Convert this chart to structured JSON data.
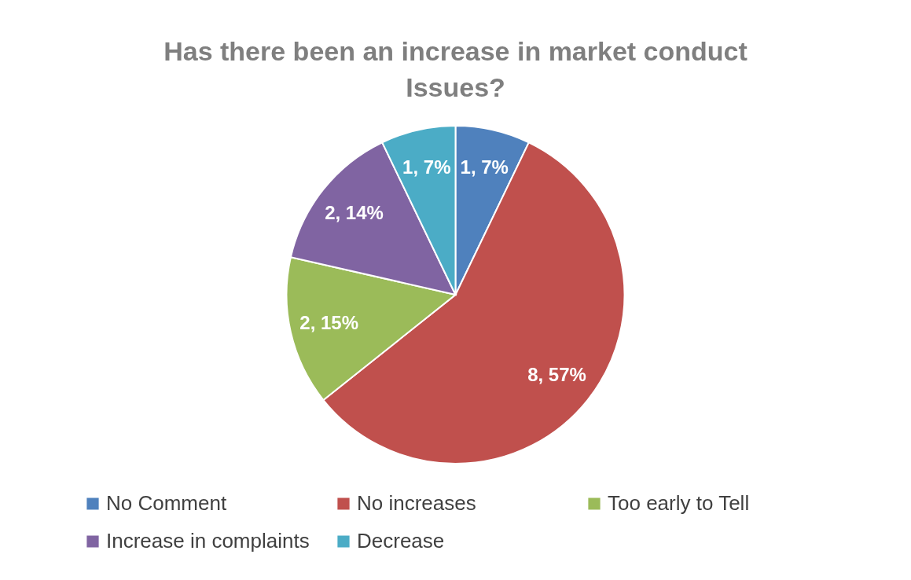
{
  "chart_data": {
    "type": "pie",
    "title": "Has there been an increase in market conduct Issues?",
    "categories": [
      "No Comment",
      "No increases",
      "Too early to Tell",
      "Increase in complaints",
      "Decrease"
    ],
    "values": [
      1,
      8,
      2,
      2,
      1
    ],
    "value_labels": [
      "1, 7%",
      "8, 57%",
      "2, 15%",
      "2, 14%",
      "1, 7%"
    ],
    "colors": [
      "#4f81bd",
      "#c0504d",
      "#9bbb59",
      "#8064a2",
      "#4bacc6"
    ],
    "legend": "bottom"
  }
}
